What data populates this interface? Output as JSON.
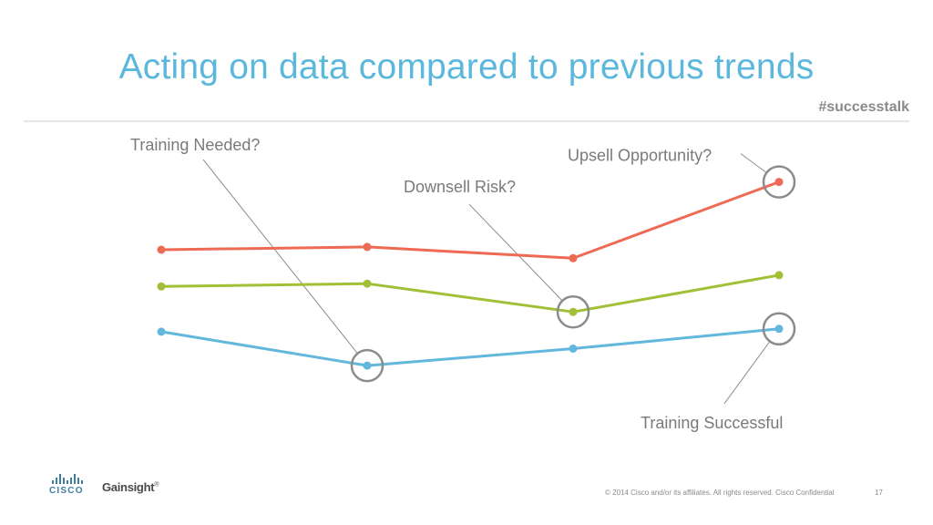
{
  "header": {
    "title": "Acting on data compared to previous trends",
    "hashtag": "#successtalk"
  },
  "chart_data": {
    "type": "line",
    "categories": [
      "",
      "",
      "",
      ""
    ],
    "ylim": [
      0,
      100
    ],
    "grid": false,
    "legend": "none",
    "series": [
      {
        "color": "#ee6a54",
        "values": [
          60,
          61,
          57,
          84
        ]
      },
      {
        "color": "#a2c037",
        "values": [
          47,
          48,
          38,
          51
        ]
      },
      {
        "color": "#62b7dc",
        "values": [
          31,
          19,
          25,
          32
        ]
      }
    ],
    "annotations": [
      {
        "text": "Training Needed?",
        "series": 2,
        "point": 1,
        "position": "top-left"
      },
      {
        "text": "Downsell Risk?",
        "series": 1,
        "point": 2,
        "position": "top-center"
      },
      {
        "text": "Upsell Opportunity?",
        "series": 0,
        "point": 3,
        "position": "top-left"
      },
      {
        "text": "Training Successful",
        "series": 2,
        "point": 3,
        "position": "bottom-left"
      }
    ]
  },
  "footer": {
    "brand_1": "CISCO",
    "brand_2": "Gainsight",
    "copyright": "© 2014  Cisco and/or its affiliates. All rights reserved.   Cisco Confidential",
    "page_number": "17"
  }
}
